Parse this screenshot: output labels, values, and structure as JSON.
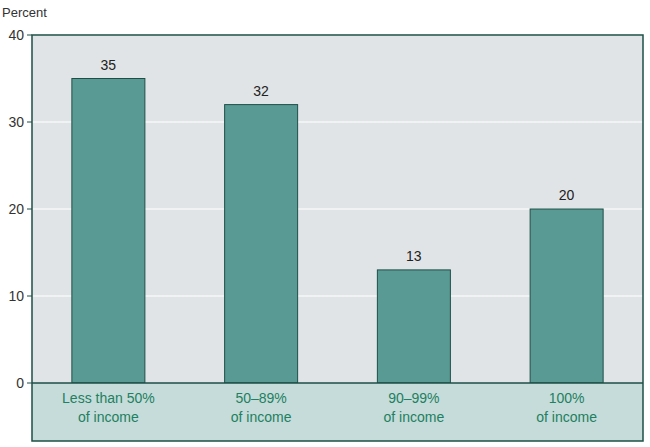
{
  "chart_data": {
    "type": "bar",
    "y_label": "Percent",
    "categories": [
      "Less than 50%\nof income",
      "50–89%\nof income",
      "90–99%\nof income",
      "100%\nof income"
    ],
    "values": [
      35,
      32,
      13,
      20
    ],
    "color": "#5a9a94",
    "ylim": [
      0,
      40
    ],
    "yticks": [
      0,
      10,
      20,
      30,
      40
    ],
    "grid": true,
    "data_labels": true
  }
}
